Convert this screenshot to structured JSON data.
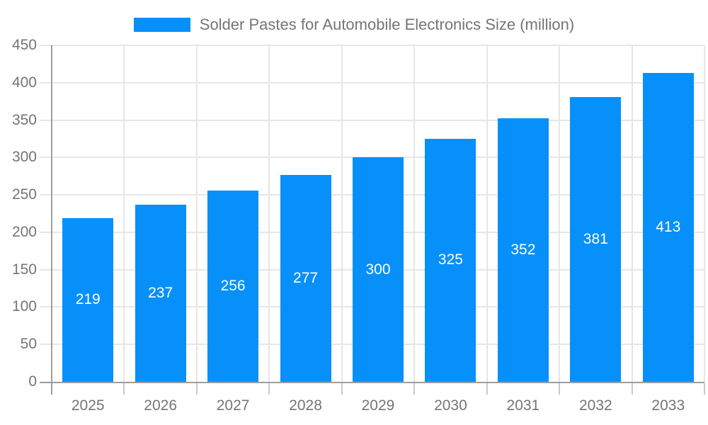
{
  "legend": {
    "label": "Solder Pastes for Automobile Electronics Size (million)"
  },
  "chart_data": {
    "type": "bar",
    "title": "Solder Pastes for Automobile Electronics Size (million)",
    "categories": [
      "2025",
      "2026",
      "2027",
      "2028",
      "2029",
      "2030",
      "2031",
      "2032",
      "2033"
    ],
    "values": [
      219,
      237,
      256,
      277,
      300,
      325,
      352,
      381,
      413
    ],
    "value_labels": [
      "219",
      "237",
      "256",
      "277",
      "300",
      "325",
      "352",
      "381",
      "413"
    ],
    "xlabel": "",
    "ylabel": "",
    "ylim": [
      0,
      450
    ],
    "ytick_step": 50,
    "yticks": [
      0,
      50,
      100,
      150,
      200,
      250,
      300,
      350,
      400,
      450
    ],
    "grid": true,
    "legend_position": "top",
    "colors": {
      "bar": "#0790fa",
      "value_label": "#ffffff",
      "axis_text": "#757575",
      "axis_line": "#9e9e9e",
      "gridline": "#e6e6e6",
      "minor_tick": "#c9c9c9",
      "background": "#ffffff"
    }
  }
}
